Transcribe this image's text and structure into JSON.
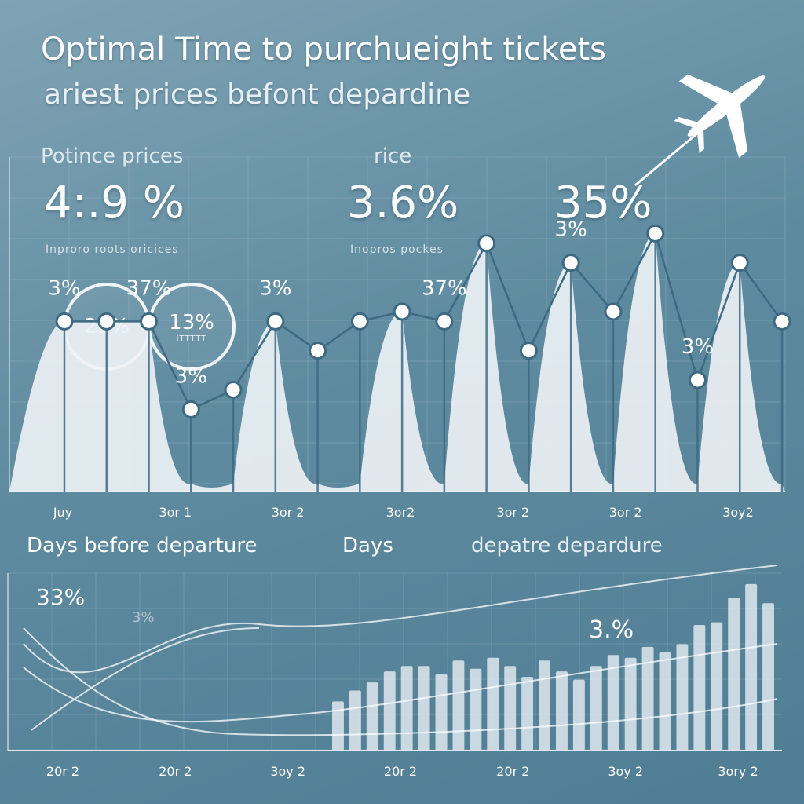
{
  "header": {
    "title": "Optimal Time to purchueight tickets",
    "subtitle": "ariest prices  befont depardine"
  },
  "stats": {
    "label_1": "Potince prices",
    "big_1": "4:.9 %",
    "small_1": "Inproro roots oricices",
    "label_2": "rice",
    "big_2": "3.6%",
    "small_2": "Inopros pockes",
    "big_3": "35%"
  },
  "rings": [
    {
      "value": "20%",
      "sub": ""
    },
    {
      "value": "13%",
      "sub": "ITTTTT"
    }
  ],
  "labels": {
    "days_left": "Days before departure",
    "days_mid": "Days",
    "days_right": "depatre depardure"
  },
  "colors": {
    "line": "#3d6a82",
    "peak_fill": "#eef3f6",
    "bar_fill": "#dfe8ee",
    "grid": "#9fbccb",
    "point_fill": "#ffffff"
  },
  "icons": {
    "plane": "airplane-icon"
  },
  "chart_data": [
    {
      "type": "line",
      "x_tick_labels": [
        "Juy",
        "3or 1",
        "3or 2",
        "3or2",
        "3or 2",
        "3or 2",
        "3oy2"
      ],
      "series": [
        {
          "values": [
            3,
            3,
            3,
            2.1,
            2.3,
            3,
            2.7,
            3,
            3.1,
            3,
            3.8,
            2.7,
            3.6,
            3.1,
            3.9,
            2.4,
            3.6,
            3
          ]
        }
      ],
      "point_labels": [
        "3%",
        "37%",
        "3%",
        "3%",
        "37%",
        "3%",
        "3%"
      ],
      "point_label_indices": [
        0,
        2,
        3,
        5,
        9,
        12,
        15
      ],
      "grid": true
    },
    {
      "type": "bar",
      "x_tick_labels": [
        "20r 2",
        "20r 2",
        "3oy 2",
        "20r 2",
        "20r 2",
        "3oy 2",
        "3ory 2"
      ],
      "annotations": [
        "33%",
        "3%",
        "3.%"
      ],
      "values": [
        1.8,
        2.2,
        2.5,
        2.9,
        3.1,
        3.1,
        2.8,
        3.3,
        3.0,
        3.4,
        3.1,
        2.7,
        3.3,
        2.9,
        2.6,
        3.1,
        3.5,
        3.4,
        3.8,
        3.6,
        3.9,
        4.6,
        4.7,
        5.6,
        6.1,
        5.4
      ],
      "grid": true
    }
  ]
}
